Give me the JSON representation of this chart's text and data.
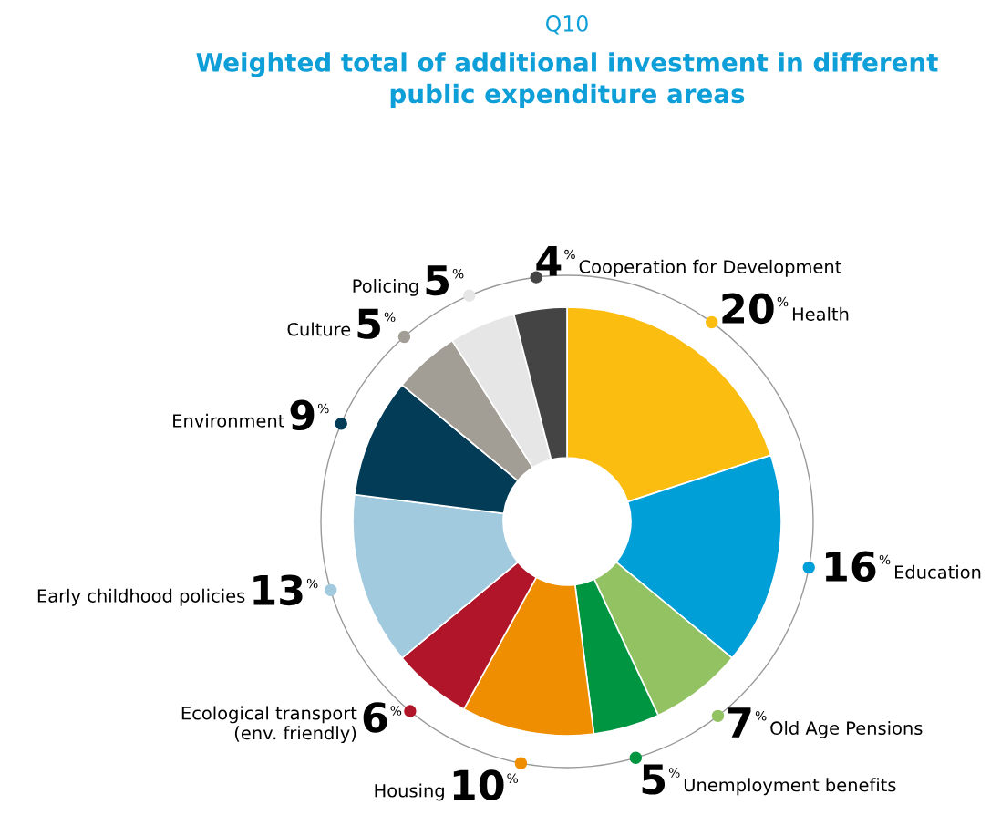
{
  "chart_data": {
    "type": "donut",
    "subtitle": "Q10",
    "title": "Weighted total of additional investment in different\npublic expenditure areas",
    "categories": [
      "Health",
      "Education",
      "Old Age Pensions",
      "Unemployment benefits",
      "Housing",
      "Ecological transport\n(env. friendly)",
      "Early childhood policies",
      "Environment",
      "Culture",
      "Policing",
      "Cooperation for Development"
    ],
    "values": [
      20,
      16,
      7,
      5,
      10,
      6,
      13,
      9,
      5,
      5,
      4
    ],
    "colors": [
      "#fbbd0f",
      "#009fd8",
      "#92c262",
      "#009641",
      "#ef8e00",
      "#b01529",
      "#a2cade",
      "#023c56",
      "#a29e96",
      "#e6e6e6",
      "#444444"
    ],
    "value_labels": [
      "20%",
      "16%",
      "7%",
      "5%",
      "10%",
      "6%",
      "13%",
      "9%",
      "5%",
      "5%",
      "4%"
    ],
    "data_labels": true
  }
}
